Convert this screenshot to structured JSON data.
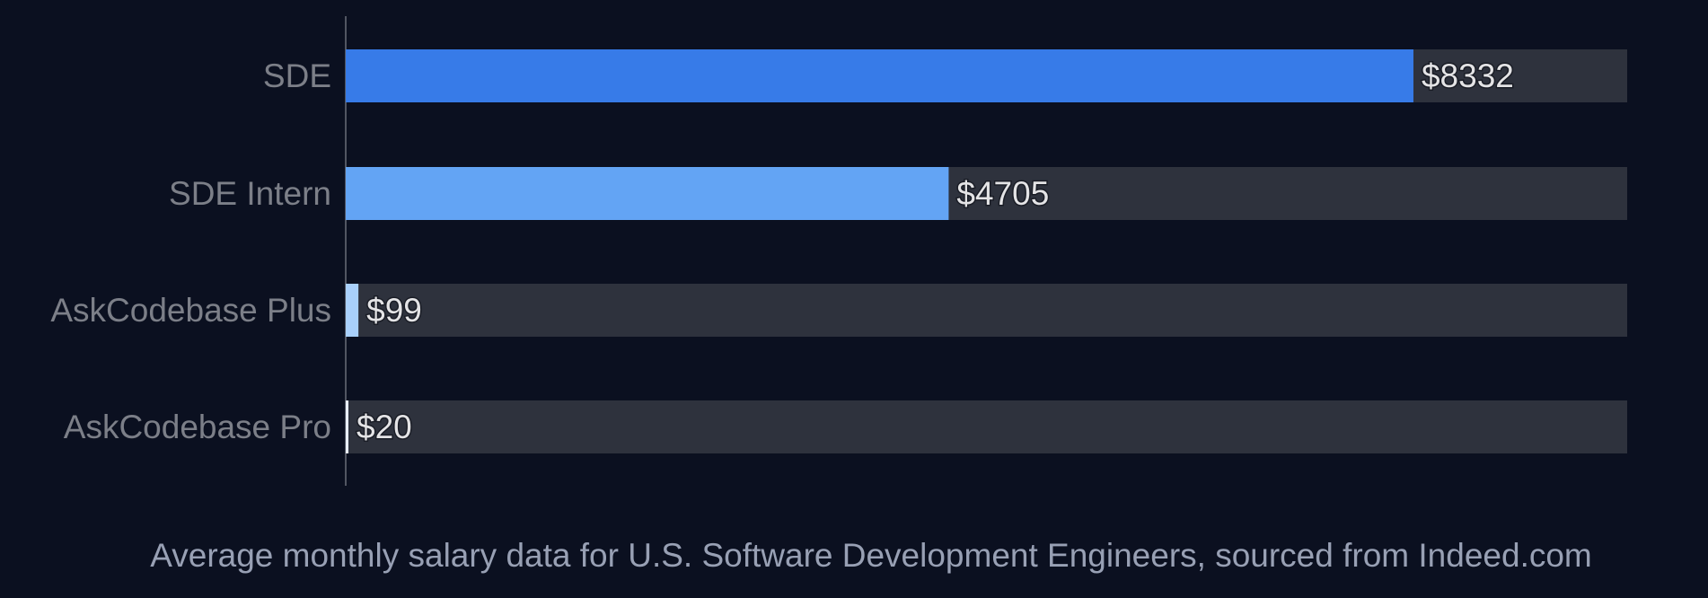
{
  "chart_data": {
    "type": "bar",
    "orientation": "horizontal",
    "categories": [
      "SDE",
      "SDE Intern",
      "AskCodebase Plus",
      "AskCodebase Pro"
    ],
    "values": [
      8332,
      4705,
      99,
      20
    ],
    "value_labels": [
      "$8332",
      "$4705",
      "$99",
      "$20"
    ],
    "colors": [
      "#377be8",
      "#63a4f4",
      "#a9d0fb",
      "#e8eefa"
    ],
    "track_color": "#2e323d",
    "xlim": [
      0,
      10000
    ],
    "grid": false,
    "title": "",
    "xlabel": "",
    "ylabel": ""
  },
  "footer": "Average monthly salary data for U.S. Software Development Engineers, sourced from Indeed.com"
}
